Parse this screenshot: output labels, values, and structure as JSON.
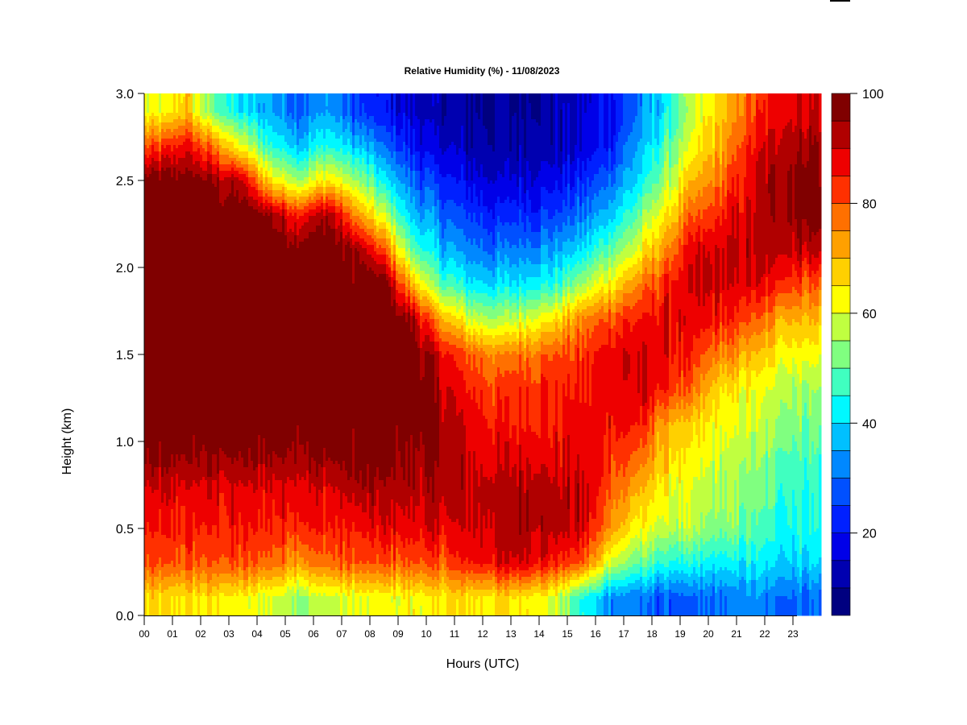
{
  "chart_data": {
    "type": "heatmap",
    "title": "Relative Humidity (%) - 11/08/2023",
    "xlabel": "Hours (UTC)",
    "ylabel": "Height (km)",
    "xlim": [
      0,
      24
    ],
    "ylim": [
      0,
      3
    ],
    "x_ticks": [
      "00",
      "01",
      "02",
      "03",
      "04",
      "05",
      "06",
      "07",
      "08",
      "09",
      "10",
      "11",
      "12",
      "13",
      "14",
      "15",
      "16",
      "17",
      "18",
      "19",
      "20",
      "21",
      "22",
      "23"
    ],
    "y_ticks": [
      "0.0",
      "0.5",
      "1.0",
      "1.5",
      "2.0",
      "2.5",
      "3.0"
    ],
    "colorbar": {
      "ticks": [
        "20",
        "40",
        "60",
        "80",
        "100"
      ],
      "levels": [
        5,
        10,
        15,
        20,
        25,
        30,
        35,
        40,
        45,
        50,
        55,
        60,
        65,
        70,
        75,
        80,
        85,
        90,
        95,
        100
      ],
      "colors": [
        "#000080",
        "#0000b0",
        "#0000e8",
        "#0020ff",
        "#0050ff",
        "#0088ff",
        "#00c0ff",
        "#00f8ff",
        "#40ffc0",
        "#80ff80",
        "#c0ff40",
        "#ffff00",
        "#ffd000",
        "#ffa000",
        "#ff7000",
        "#ff3000",
        "#ee0000",
        "#b00000",
        "#800000"
      ]
    },
    "grid": false,
    "hours": [
      0.5,
      1.5,
      2.5,
      3.5,
      4.5,
      5.5,
      6.5,
      7.5,
      8.5,
      9.5,
      10.5,
      11.5,
      12.5,
      13.5,
      14.5,
      15.5,
      16.5,
      17.5,
      18.5,
      19.5,
      20.5,
      21.5,
      22.5,
      23.5
    ],
    "heights_km": [
      0.1,
      0.3,
      0.5,
      0.7,
      0.9,
      1.1,
      1.3,
      1.5,
      1.7,
      1.9,
      2.1,
      2.3,
      2.5,
      2.7,
      2.9
    ],
    "values": [
      [
        65,
        80,
        85,
        88,
        95,
        100,
        100,
        100,
        100,
        100,
        100,
        100,
        98,
        80,
        60
      ],
      [
        65,
        80,
        85,
        88,
        95,
        100,
        100,
        100,
        100,
        100,
        100,
        100,
        98,
        88,
        68
      ],
      [
        65,
        80,
        85,
        88,
        95,
        100,
        100,
        100,
        100,
        100,
        100,
        100,
        95,
        75,
        50
      ],
      [
        62,
        80,
        85,
        88,
        95,
        100,
        100,
        100,
        100,
        100,
        100,
        100,
        90,
        60,
        40
      ],
      [
        60,
        78,
        85,
        88,
        95,
        100,
        100,
        100,
        100,
        100,
        100,
        95,
        65,
        45,
        35
      ],
      [
        55,
        75,
        85,
        88,
        95,
        100,
        100,
        100,
        100,
        100,
        100,
        85,
        55,
        38,
        30
      ],
      [
        58,
        78,
        85,
        88,
        95,
        100,
        100,
        100,
        100,
        100,
        100,
        95,
        65,
        45,
        35
      ],
      [
        60,
        80,
        85,
        92,
        98,
        100,
        100,
        100,
        100,
        100,
        95,
        75,
        55,
        38,
        25
      ],
      [
        62,
        80,
        88,
        92,
        98,
        100,
        100,
        100,
        100,
        100,
        80,
        58,
        42,
        30,
        20
      ],
      [
        62,
        80,
        88,
        92,
        95,
        98,
        100,
        100,
        95,
        70,
        50,
        38,
        30,
        20,
        15
      ],
      [
        65,
        80,
        88,
        92,
        95,
        95,
        92,
        88,
        72,
        50,
        38,
        30,
        22,
        15,
        12
      ],
      [
        65,
        85,
        90,
        92,
        90,
        88,
        85,
        80,
        60,
        42,
        32,
        25,
        18,
        12,
        10
      ],
      [
        65,
        88,
        92,
        92,
        88,
        85,
        82,
        75,
        55,
        40,
        30,
        22,
        15,
        10,
        10
      ],
      [
        65,
        90,
        95,
        95,
        90,
        85,
        85,
        78,
        60,
        42,
        32,
        24,
        17,
        12,
        10
      ],
      [
        60,
        85,
        92,
        92,
        88,
        85,
        85,
        80,
        65,
        45,
        35,
        25,
        18,
        12,
        12
      ],
      [
        45,
        80,
        90,
        92,
        88,
        88,
        85,
        82,
        75,
        55,
        40,
        30,
        22,
        15,
        15
      ],
      [
        35,
        60,
        75,
        80,
        85,
        88,
        88,
        88,
        82,
        65,
        50,
        38,
        30,
        22,
        20
      ],
      [
        30,
        50,
        62,
        70,
        78,
        85,
        90,
        90,
        85,
        75,
        60,
        50,
        40,
        35,
        30
      ],
      [
        28,
        45,
        58,
        62,
        68,
        72,
        85,
        88,
        88,
        85,
        75,
        65,
        55,
        48,
        42
      ],
      [
        28,
        42,
        55,
        58,
        62,
        65,
        75,
        82,
        88,
        90,
        88,
        78,
        70,
        62,
        58
      ],
      [
        30,
        42,
        52,
        55,
        58,
        62,
        65,
        75,
        85,
        90,
        90,
        85,
        78,
        72,
        68
      ],
      [
        32,
        42,
        50,
        52,
        55,
        58,
        62,
        70,
        80,
        88,
        92,
        90,
        88,
        85,
        80
      ],
      [
        30,
        40,
        45,
        48,
        50,
        55,
        58,
        65,
        72,
        85,
        92,
        95,
        95,
        92,
        88
      ],
      [
        30,
        40,
        45,
        45,
        48,
        52,
        55,
        62,
        70,
        80,
        92,
        98,
        98,
        95,
        90
      ]
    ]
  }
}
